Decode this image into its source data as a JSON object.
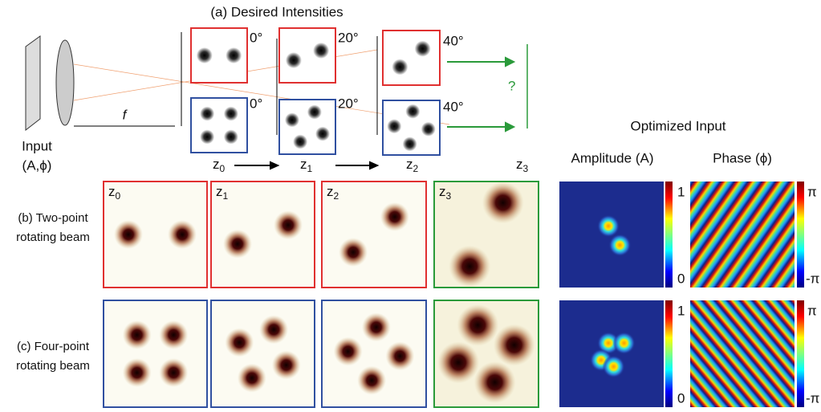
{
  "header": {
    "title": "(a) Desired Intensities"
  },
  "input": {
    "label": "Input",
    "params": "(A,ϕ)",
    "focal": "f"
  },
  "planes": [
    {
      "base": "z",
      "sub": "0"
    },
    {
      "base": "z",
      "sub": "1"
    },
    {
      "base": "z",
      "sub": "2"
    },
    {
      "base": "z",
      "sub": "3"
    }
  ],
  "angles": {
    "two_point": [
      "0°",
      "20°",
      "40°"
    ],
    "four_point": [
      "0°",
      "20°",
      "40°"
    ]
  },
  "unknown": "?",
  "rows": [
    {
      "line1": "(b) Two-point",
      "line2": "rotating beam"
    },
    {
      "line1": "(c) Four-point",
      "line2": "rotating beam"
    }
  ],
  "optimized": {
    "title": "Optimized Input",
    "amplitude": "Amplitude (A)",
    "phase": "Phase (ϕ)",
    "amp_ticks": [
      "1",
      "0"
    ],
    "phase_ticks": [
      "π",
      "-π"
    ]
  }
}
